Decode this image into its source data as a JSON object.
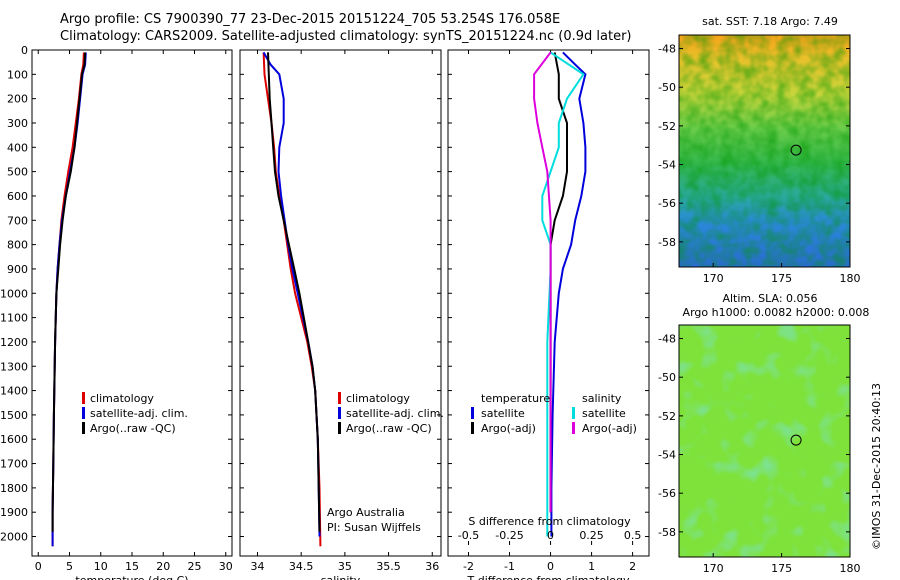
{
  "header": {
    "line1": "Argo profile: CS 7900390_77 23-Dec-2015 20151224_705 53.254S 176.058E",
    "line2": "Climatology: CARS2009. Satellite-adjusted climatology: synTS_20151224.nc (0.9d later)"
  },
  "credit": "©IMOS 31-Dec-2015 20:40:13",
  "colors": {
    "climatology": "#dd0000",
    "satellite": "#0000dd",
    "argo": "#000000",
    "sat_salinity": "#00dddd",
    "argo_salinity": "#dd00dd"
  },
  "chart_data": [
    {
      "id": "temperature",
      "type": "line",
      "xlabel": "temperature (deg C)",
      "ylabel": "",
      "xlim": [
        -1,
        31
      ],
      "ylim": [
        2080,
        0
      ],
      "xticks": [
        "0",
        "5",
        "10",
        "15",
        "20",
        "25",
        "30"
      ],
      "yticks": [
        "0",
        "100",
        "200",
        "300",
        "400",
        "500",
        "600",
        "700",
        "800",
        "900",
        "1000",
        "1100",
        "1200",
        "1300",
        "1400",
        "1500",
        "1600",
        "1700",
        "1800",
        "1900",
        "2000"
      ],
      "legend": [
        "climatology",
        "satellite-adj. clim.",
        "Argo(..raw -QC)"
      ],
      "series": [
        {
          "name": "climatology",
          "color": "#dd0000",
          "points": [
            [
              7.3,
              10
            ],
            [
              7.2,
              60
            ],
            [
              6.9,
              100
            ],
            [
              6.5,
              200
            ],
            [
              6.0,
              300
            ],
            [
              5.5,
              400
            ],
            [
              4.8,
              500
            ],
            [
              4.2,
              600
            ],
            [
              3.7,
              700
            ],
            [
              3.4,
              800
            ],
            [
              3.1,
              900
            ],
            [
              2.9,
              1000
            ],
            [
              2.7,
              1200
            ],
            [
              2.5,
              1500
            ],
            [
              2.4,
              1700
            ],
            [
              2.3,
              1900
            ],
            [
              2.3,
              2040
            ]
          ]
        },
        {
          "name": "satellite-adj. clim.",
          "color": "#0000dd",
          "points": [
            [
              7.6,
              10
            ],
            [
              7.5,
              60
            ],
            [
              7.1,
              100
            ],
            [
              6.7,
              200
            ],
            [
              6.3,
              300
            ],
            [
              5.8,
              400
            ],
            [
              5.1,
              500
            ],
            [
              4.4,
              600
            ],
            [
              3.8,
              700
            ],
            [
              3.4,
              800
            ],
            [
              3.1,
              900
            ],
            [
              2.9,
              1000
            ],
            [
              2.7,
              1200
            ],
            [
              2.5,
              1500
            ],
            [
              2.4,
              1700
            ],
            [
              2.3,
              1900
            ],
            [
              2.3,
              2040
            ]
          ]
        },
        {
          "name": "Argo(..raw -QC)",
          "color": "#000000",
          "points": [
            [
              7.5,
              10
            ],
            [
              7.4,
              60
            ],
            [
              7.0,
              100
            ],
            [
              6.6,
              200
            ],
            [
              6.2,
              300
            ],
            [
              5.8,
              400
            ],
            [
              5.2,
              500
            ],
            [
              4.4,
              600
            ],
            [
              3.9,
              700
            ],
            [
              3.5,
              800
            ],
            [
              3.2,
              900
            ],
            [
              2.9,
              1000
            ],
            [
              2.7,
              1200
            ],
            [
              2.5,
              1500
            ],
            [
              2.4,
              1700
            ],
            [
              2.3,
              1900
            ],
            [
              2.3,
              1980
            ]
          ]
        }
      ]
    },
    {
      "id": "salinity",
      "type": "line",
      "xlabel": "salinity",
      "ylabel": "",
      "xlim": [
        33.8,
        36.1
      ],
      "ylim": [
        2080,
        0
      ],
      "xticks": [
        "34",
        "34.5",
        "35",
        "35.5",
        "36"
      ],
      "legend": [
        "climatology",
        "satellite-adj. clim.",
        "Argo(..raw -QC)"
      ],
      "annotation": [
        "Argo Australia",
        "PI: Susan Wijffels"
      ],
      "series": [
        {
          "name": "climatology",
          "color": "#dd0000",
          "points": [
            [
              34.07,
              10
            ],
            [
              34.08,
              100
            ],
            [
              34.12,
              200
            ],
            [
              34.16,
              300
            ],
            [
              34.19,
              400
            ],
            [
              34.21,
              500
            ],
            [
              34.25,
              600
            ],
            [
              34.3,
              700
            ],
            [
              34.34,
              800
            ],
            [
              34.38,
              900
            ],
            [
              34.43,
              1000
            ],
            [
              34.5,
              1100
            ],
            [
              34.57,
              1200
            ],
            [
              34.62,
              1300
            ],
            [
              34.66,
              1400
            ],
            [
              34.69,
              1600
            ],
            [
              34.71,
              1800
            ],
            [
              34.72,
              2040
            ]
          ]
        },
        {
          "name": "satellite-adj. clim.",
          "color": "#0000dd",
          "points": [
            [
              34.07,
              10
            ],
            [
              34.15,
              60
            ],
            [
              34.25,
              100
            ],
            [
              34.3,
              200
            ],
            [
              34.3,
              300
            ],
            [
              34.25,
              400
            ],
            [
              34.24,
              500
            ],
            [
              34.27,
              600
            ],
            [
              34.31,
              700
            ],
            [
              34.35,
              800
            ],
            [
              34.4,
              900
            ],
            [
              34.46,
              1000
            ],
            [
              34.52,
              1100
            ],
            [
              34.58,
              1200
            ],
            [
              34.63,
              1300
            ],
            [
              34.66,
              1400
            ],
            [
              34.69,
              1600
            ],
            [
              34.7,
              1800
            ],
            [
              34.71,
              2000
            ]
          ]
        },
        {
          "name": "Argo(..raw -QC)",
          "color": "#000000",
          "points": [
            [
              34.12,
              10
            ],
            [
              34.13,
              100
            ],
            [
              34.14,
              200
            ],
            [
              34.16,
              300
            ],
            [
              34.18,
              400
            ],
            [
              34.2,
              500
            ],
            [
              34.24,
              600
            ],
            [
              34.3,
              700
            ],
            [
              34.36,
              800
            ],
            [
              34.42,
              900
            ],
            [
              34.48,
              1000
            ],
            [
              34.53,
              1100
            ],
            [
              34.58,
              1200
            ],
            [
              34.63,
              1300
            ],
            [
              34.66,
              1400
            ],
            [
              34.69,
              1600
            ],
            [
              34.7,
              1800
            ],
            [
              34.71,
              1980
            ]
          ]
        }
      ]
    },
    {
      "id": "difference",
      "type": "line",
      "xlabel": "T difference from climatology",
      "ylabel": "",
      "top_label": "S difference from climatology",
      "xlim": [
        -2.5,
        2.4
      ],
      "ylim": [
        2080,
        0
      ],
      "xticks": [
        "-2",
        "-1",
        "0",
        "1",
        "2"
      ],
      "s_ticks": [
        "-0.5",
        "-0.25",
        "0",
        "0.25",
        "0.5"
      ],
      "legend": [
        "temperature",
        "satellite",
        "Argo(-adj)",
        "salinity",
        "satellite",
        "Argo(-adj)"
      ],
      "series": [
        {
          "name": "satellite",
          "color": "#0000dd",
          "points": [
            [
              0.3,
              10
            ],
            [
              0.6,
              60
            ],
            [
              0.85,
              100
            ],
            [
              0.7,
              200
            ],
            [
              0.8,
              300
            ],
            [
              0.85,
              400
            ],
            [
              0.85,
              500
            ],
            [
              0.75,
              600
            ],
            [
              0.6,
              700
            ],
            [
              0.5,
              800
            ],
            [
              0.3,
              900
            ],
            [
              0.2,
              1000
            ],
            [
              0.1,
              1200
            ],
            [
              0.05,
              1500
            ],
            [
              0.02,
              1800
            ],
            [
              0.02,
              2000
            ]
          ]
        },
        {
          "name": "Argo(-adj)",
          "color": "#000000",
          "points": [
            [
              0.1,
              10
            ],
            [
              0.2,
              100
            ],
            [
              0.2,
              200
            ],
            [
              0.4,
              300
            ],
            [
              0.4,
              400
            ],
            [
              0.4,
              500
            ],
            [
              0.3,
              600
            ],
            [
              0.1,
              700
            ],
            [
              0.0,
              800
            ],
            [
              0.0,
              900
            ],
            [
              0.0,
              1100
            ],
            [
              0.0,
              1500
            ],
            [
              0.0,
              1900
            ]
          ]
        },
        {
          "name": "satellite",
          "color": "#00dddd",
          "points": [
            [
              0.0,
              10
            ],
            [
              0.2,
              100
            ],
            [
              0.1,
              200
            ],
            [
              0.05,
              300
            ],
            [
              0.05,
              400
            ],
            [
              0.0,
              500
            ],
            [
              -0.05,
              600
            ],
            [
              -0.05,
              700
            ],
            [
              0.0,
              800
            ],
            [
              0.0,
              900
            ],
            [
              -0.02,
              1200
            ],
            [
              -0.02,
              1500
            ],
            [
              -0.02,
              1900
            ],
            [
              -0.02,
              2000
            ]
          ]
        },
        {
          "name": "Argo(-adj)",
          "color": "#dd00dd",
          "points": [
            [
              0.0,
              10
            ],
            [
              -0.1,
              100
            ],
            [
              -0.1,
              200
            ],
            [
              -0.08,
              300
            ],
            [
              -0.05,
              400
            ],
            [
              -0.02,
              500
            ],
            [
              0.0,
              700
            ],
            [
              0.0,
              1000
            ],
            [
              0.0,
              1500
            ],
            [
              0.0,
              1900
            ]
          ]
        }
      ]
    },
    {
      "id": "sst_map",
      "type": "heatmap",
      "title": "sat. SST: 7.18 Argo: 7.49",
      "xlim": [
        167.5,
        180.0
      ],
      "ylim": [
        -59.3,
        -47.3
      ],
      "xticks": [
        "170",
        "175",
        "180"
      ],
      "yticks": [
        "-48",
        "-50",
        "-52",
        "-54",
        "-56",
        "-58"
      ],
      "marker": [
        176.058,
        -53.254
      ]
    },
    {
      "id": "sla_map",
      "type": "heatmap",
      "title": "Altim. SLA: 0.056",
      "subtitle": "Argo h1000: 0.0082 h2000: 0.008",
      "xlim": [
        167.5,
        180.0
      ],
      "ylim": [
        -59.3,
        -47.3
      ],
      "xticks": [
        "170",
        "175",
        "180"
      ],
      "yticks": [
        "-48",
        "-50",
        "-52",
        "-54",
        "-56",
        "-58"
      ],
      "marker": [
        176.058,
        -53.254
      ]
    }
  ]
}
